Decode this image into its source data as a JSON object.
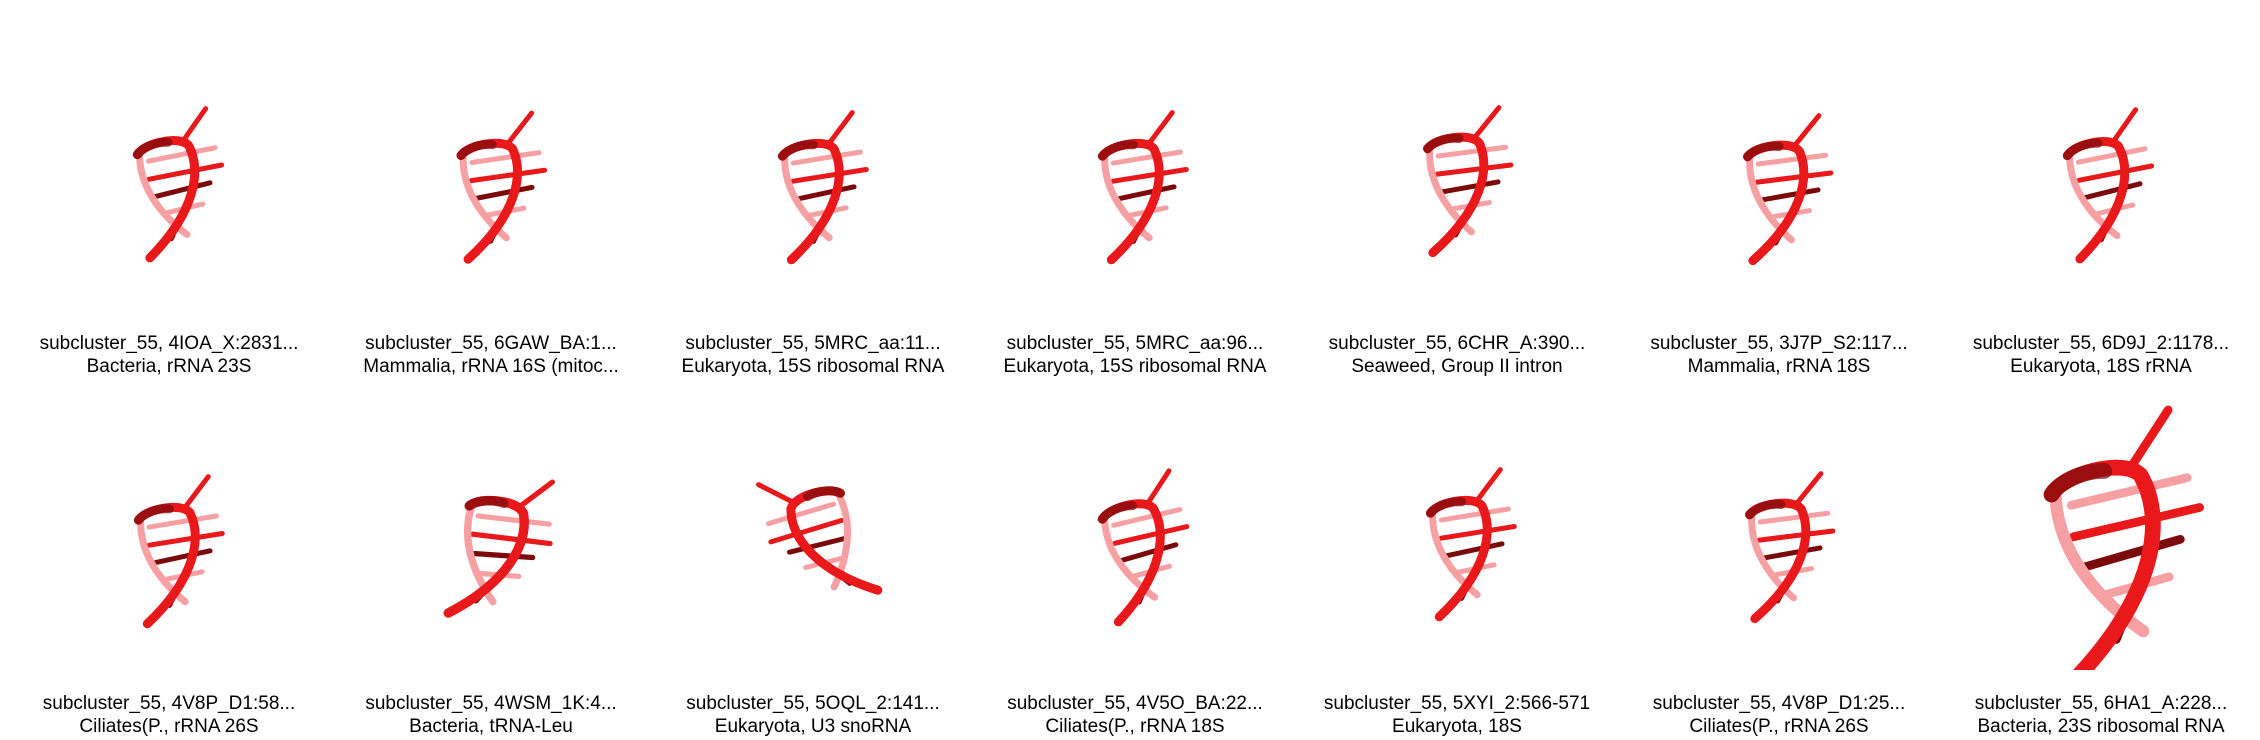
{
  "colors": {
    "strand": "#e8181b",
    "strand_dark": "#7a0a0c",
    "strand_light": "#f7a0a4",
    "background": "#ffffff"
  },
  "tiles": [
    {
      "id": "subcluster_55, 4IOA_X:2831...",
      "desc": "Bacteria, rRNA 23S",
      "icon": "rna-structure-icon"
    },
    {
      "id": "subcluster_55, 6GAW_BA:1...",
      "desc": "Mammalia, rRNA 16S (mitoc...",
      "icon": "rna-structure-icon"
    },
    {
      "id": "subcluster_55, 5MRC_aa:11...",
      "desc": "Eukaryota, 15S ribosomal RNA",
      "icon": "rna-structure-icon"
    },
    {
      "id": "subcluster_55, 5MRC_aa:96...",
      "desc": "Eukaryota, 15S ribosomal RNA",
      "icon": "rna-structure-icon"
    },
    {
      "id": "subcluster_55, 6CHR_A:390...",
      "desc": "Seaweed, Group II intron",
      "icon": "rna-structure-icon"
    },
    {
      "id": "subcluster_55, 3J7P_S2:117...",
      "desc": "Mammalia, rRNA 18S",
      "icon": "rna-structure-icon"
    },
    {
      "id": "subcluster_55, 6D9J_2:1178...",
      "desc": "Eukaryota, 18S rRNA",
      "icon": "rna-structure-icon"
    },
    {
      "id": "subcluster_55, 4V8P_D1:58...",
      "desc": "Ciliates(P., rRNA 26S",
      "icon": "rna-structure-icon"
    },
    {
      "id": "subcluster_55, 4WSM_1K:4...",
      "desc": "Bacteria, tRNA-Leu",
      "icon": "rna-structure-icon"
    },
    {
      "id": "subcluster_55, 5OQL_2:141...",
      "desc": "Eukaryota, U3 snoRNA",
      "icon": "rna-structure-icon"
    },
    {
      "id": "subcluster_55, 4V5O_BA:22...",
      "desc": "Ciliates(P., rRNA 18S",
      "icon": "rna-structure-icon"
    },
    {
      "id": "subcluster_55, 5XYI_2:566-571",
      "desc": "Eukaryota, 18S",
      "icon": "rna-structure-icon"
    },
    {
      "id": "subcluster_55, 4V8P_D1:25...",
      "desc": "Ciliates(P., rRNA 26S",
      "icon": "rna-structure-icon"
    },
    {
      "id": "subcluster_55, 6HA1_A:228...",
      "desc": "Bacteria, 23S ribosomal RNA",
      "icon": "rna-structure-icon"
    }
  ]
}
